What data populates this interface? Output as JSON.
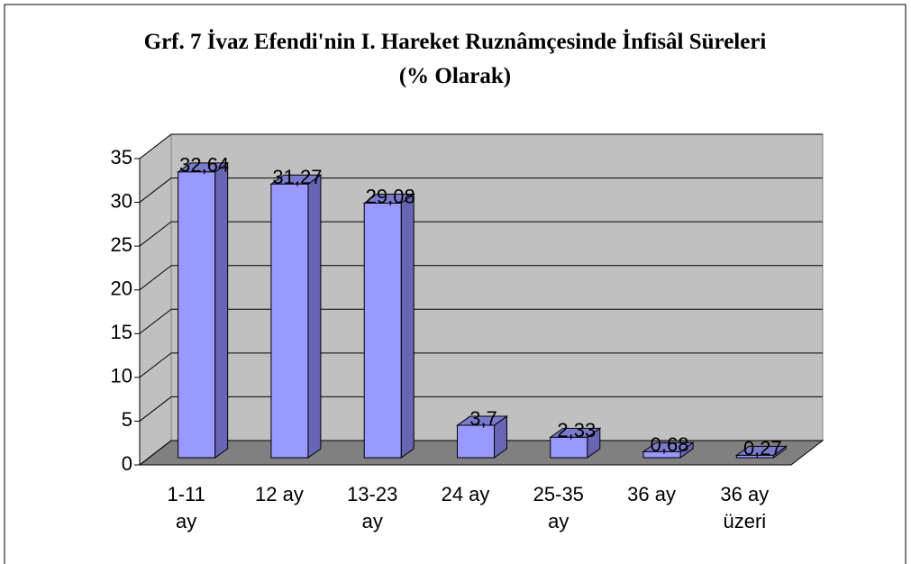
{
  "chart_data": {
    "type": "bar3d",
    "title": "Grf. 7  İvaz Efendi'nin I. Hareket Ruznâmçesinde İnfisâl Süreleri (% Olarak)",
    "categories": [
      "1-11 ay",
      "12 ay",
      "13-23 ay",
      "24 ay",
      "25-35 ay",
      "36 ay",
      "36 ay üzeri"
    ],
    "values": [
      32.64,
      31.27,
      29.08,
      3.7,
      2.33,
      0.68,
      0.27
    ],
    "value_labels": [
      "32,64",
      "31,27",
      "29,08",
      "3,7",
      "2,33",
      "0,68",
      "0,27"
    ],
    "color": "#9999ff",
    "ylim": [
      0,
      35
    ],
    "yticks": [
      0,
      5,
      10,
      15,
      20,
      25,
      30,
      35
    ],
    "grid": true
  }
}
